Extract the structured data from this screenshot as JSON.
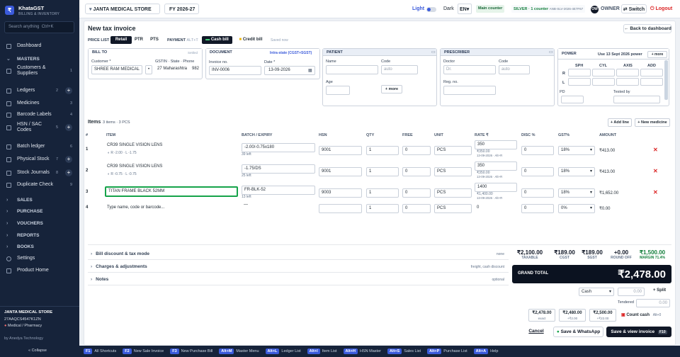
{
  "app": {
    "logo_glyph": "₹",
    "name": "KhataGST",
    "tagline": "BILLING & INVENTORY"
  },
  "sidebar": {
    "search_placeholder": "Search anything",
    "search_shortcut": "Ctrl+K",
    "dashboard": "Dashboard",
    "masters_heading": "MASTERS",
    "items": [
      {
        "label": "Customers & Suppliers",
        "count": "1",
        "plus": false
      },
      {
        "label": "Ledgers",
        "count": "2",
        "plus": true
      },
      {
        "label": "Medicines",
        "count": "3",
        "plus": false
      },
      {
        "label": "Barcode Labels",
        "count": "4",
        "plus": false
      },
      {
        "label": "HSN / SAC Codes",
        "count": "5",
        "plus": true
      },
      {
        "label": "Batch ledger",
        "count": "6",
        "plus": false
      },
      {
        "label": "Physical Stock",
        "count": "7",
        "plus": true
      },
      {
        "label": "Stock Journals",
        "count": "8",
        "plus": true
      },
      {
        "label": "Duplicate Check",
        "count": "9",
        "plus": false
      }
    ],
    "sections": [
      "SALES",
      "PURCHASE",
      "VOUCHERS",
      "REPORTS",
      "BOOKS"
    ],
    "settings": "Settings",
    "product_home": "Product Home",
    "company": "JANTA MEDICAL STORE",
    "gstin": "27AAQCS4547K1ZN",
    "business_type": "Medical / Pharmacy",
    "by": "by Anedya Technology",
    "collapse": "« Collapse"
  },
  "topbar": {
    "company": "JANTA MEDICAL STORE",
    "fy": "FY 2026-27",
    "theme_light": "Light",
    "theme_dark": "Dark",
    "lang": "EN",
    "counter": "Main counter",
    "plan": "SILVER · 1 counter",
    "license": "ANB-SLV-2026-4E7F67",
    "avatar": "OW",
    "role": "OWNER",
    "switch": "Switch",
    "logout": "Logout"
  },
  "invoice": {
    "title": "New tax invoice",
    "back": "Back to dashboard",
    "price_list_label": "PRICE LIST",
    "price_lists": [
      "Retail",
      "PTR",
      "PTS"
    ],
    "active_price_list": "Retail",
    "payment_label": "PAYMENT",
    "payment_shortcut": "ALT+T",
    "cash_bill": "Cash bill",
    "credit_bill": "Credit bill",
    "saved": "Saved now"
  },
  "bill_to": {
    "heading": "BILL TO",
    "settled": "Settled",
    "customer_label": "Customer *",
    "customer": "SHREE RAM MEDICAL",
    "gstin_label": "GSTIN · State · Phone",
    "state": "27 Maharashtra",
    "phone": "982"
  },
  "document": {
    "heading": "DOCUMENT",
    "tax_type": "Intra-state (CGST+SGST)",
    "invoice_no_label": "Invoice no.",
    "invoice_no": "INV-0006",
    "date_label": "Date *",
    "date": "13-09-2026"
  },
  "patient": {
    "heading": "PATIENT",
    "name_label": "Name",
    "code_label": "Code",
    "code_placeholder": "auto",
    "age_label": "Age",
    "more": "+ more"
  },
  "prescriber": {
    "heading": "PRESCRIBER",
    "doctor_label": "Doctor",
    "doctor_placeholder": "Dr.",
    "code_label": "Code",
    "code_placeholder": "auto",
    "reg_label": "Reg. no."
  },
  "power": {
    "heading": "POWER",
    "date_text": "Use 13 Sept 2026 power",
    "more": "+ more",
    "cols": [
      "SPH",
      "CYL",
      "AXIS",
      "ADD"
    ],
    "rows": [
      "R",
      "L"
    ],
    "pd_label": "PD",
    "tested_label": "Tested by"
  },
  "items": {
    "heading": "Items",
    "summary": "3 items · 3 PCS",
    "add_line": "+ Add line",
    "new_medicine": "+ New medicine",
    "columns": [
      "#",
      "ITEM",
      "BATCH / EXPIRY",
      "HSN",
      "QTY",
      "FREE",
      "UNIT",
      "RATE ₹",
      "DISC %",
      "GST%",
      "AMOUNT"
    ],
    "rows": [
      {
        "n": "1",
        "name": "CR39 SINGLE VISION LENS",
        "sub": "R -2.00 · L -1.75",
        "batch": "-2.00/-0.75x180",
        "left": "39 left",
        "hsn": "9001",
        "qty": "1",
        "free": "0",
        "unit": "PCS",
        "rate": "350",
        "rate_note": "₹350.00",
        "rate_date": "13-09-2026 · Alt+R",
        "disc": "0",
        "gst": "18%",
        "amount": "₹413.00"
      },
      {
        "n": "2",
        "name": "CR39 SINGLE VISION LENS",
        "sub": "R -0.75 · L -0.75",
        "batch": "-1.75/DS",
        "left": "25 left",
        "hsn": "9001",
        "qty": "1",
        "free": "0",
        "unit": "PCS",
        "rate": "350",
        "rate_note": "₹350.00",
        "rate_date": "13-09-2026 · Alt+R",
        "disc": "0",
        "gst": "18%",
        "amount": "₹413.00"
      },
      {
        "n": "3",
        "name": "TITAN FRAME BLACK 52MM",
        "sub": "",
        "batch": "FR-BLK-52",
        "left": "13 left",
        "hsn": "9003",
        "qty": "1",
        "free": "0",
        "unit": "PCS",
        "rate": "1400",
        "rate_note": "₹1,400.00",
        "rate_date": "13-09-2026 · Alt+R",
        "disc": "0",
        "gst": "18%",
        "amount": "₹1,652.00"
      },
      {
        "n": "4",
        "name": "",
        "placeholder": "Type name, code or barcode...",
        "sub": "",
        "batch": "—",
        "left": "",
        "hsn": "",
        "qty": "1",
        "free": "0",
        "unit": "PCS",
        "rate": "0",
        "rate_note": "",
        "rate_date": "",
        "disc": "0",
        "gst": "0%",
        "amount": "₹0.00"
      }
    ]
  },
  "accordions": [
    {
      "label": "Bill discount & tax mode",
      "right": "none"
    },
    {
      "label": "Charges & adjustments",
      "right": "freight, cash discount"
    },
    {
      "label": "Notes",
      "right": "optional"
    }
  ],
  "totals": [
    {
      "value": "₹2,100.00",
      "key": "TAXABLE",
      "color": "#111827"
    },
    {
      "value": "₹189.00",
      "key": "CGST",
      "color": "#111827"
    },
    {
      "value": "₹189.00",
      "key": "SGST",
      "color": "#111827"
    },
    {
      "value": "+0.00",
      "key": "ROUND OFF",
      "color": "#111827"
    },
    {
      "value": "₹1,500.00",
      "key": "MARGIN 71.4%",
      "color": "#15803d"
    }
  ],
  "grand": {
    "label": "GRAND TOTAL",
    "value": "₹2,478.00"
  },
  "payment": {
    "method": "Cash",
    "amount": "0.00",
    "split": "+ Split",
    "tendered_label": "Tendered",
    "tendered": "0.00",
    "quick": [
      {
        "v": "₹2,478.00",
        "s": "exact"
      },
      {
        "v": "₹2,480.00",
        "s": "+₹2.00"
      },
      {
        "v": "₹2,500.00",
        "s": "+₹22.00"
      }
    ],
    "count_cash": "Count cash",
    "count_shortcut": "Alt+0"
  },
  "actions": {
    "cancel": "Cancel",
    "save_whatsapp": "Save & WhatsApp",
    "save_view": "Save & view invoice",
    "save_key": "F10"
  },
  "shortcuts": [
    {
      "k": "F1",
      "t": "All Shortcuts"
    },
    {
      "k": "F2",
      "t": "New Sale Invoice"
    },
    {
      "k": "F3",
      "t": "New Purchase Bill"
    },
    {
      "k": "Alt+M",
      "t": "Master Menu"
    },
    {
      "k": "Alt+L",
      "t": "Ledger List"
    },
    {
      "k": "Alt+I",
      "t": "Item List"
    },
    {
      "k": "Alt+H",
      "t": "HSN Master"
    },
    {
      "k": "Alt+S",
      "t": "Sales List"
    },
    {
      "k": "Alt+P",
      "t": "Purchase List"
    },
    {
      "k": "Alt+A",
      "t": "Help"
    }
  ],
  "colors": {
    "sidebar": "#16233a",
    "accent": "#3b5bdb",
    "active_row_border": "#16a34a",
    "danger": "#dc2626",
    "margin": "#15803d",
    "silver": "#15803d"
  }
}
